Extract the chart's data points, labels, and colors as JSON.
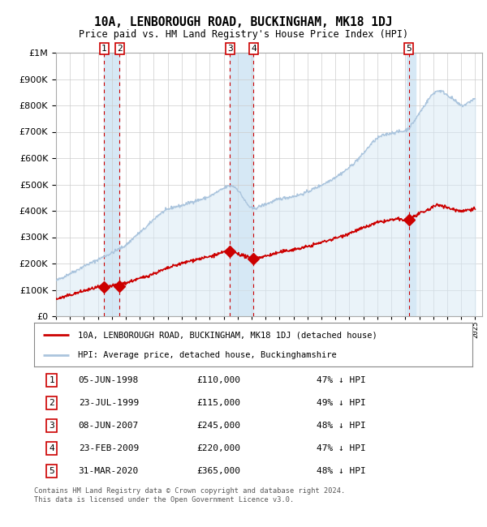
{
  "title": "10A, LENBOROUGH ROAD, BUCKINGHAM, MK18 1DJ",
  "subtitle": "Price paid vs. HM Land Registry's House Price Index (HPI)",
  "footer": "Contains HM Land Registry data © Crown copyright and database right 2024.\nThis data is licensed under the Open Government Licence v3.0.",
  "legend_label_red": "10A, LENBOROUGH ROAD, BUCKINGHAM, MK18 1DJ (detached house)",
  "legend_label_blue": "HPI: Average price, detached house, Buckinghamshire",
  "transactions": [
    {
      "num": 1,
      "date": "05-JUN-1998",
      "price": 110000,
      "pct": "47% ↓ HPI",
      "year": 1998.44
    },
    {
      "num": 2,
      "date": "23-JUL-1999",
      "price": 115000,
      "pct": "49% ↓ HPI",
      "year": 1999.56
    },
    {
      "num": 3,
      "date": "08-JUN-2007",
      "price": 245000,
      "pct": "48% ↓ HPI",
      "year": 2007.44
    },
    {
      "num": 4,
      "date": "23-FEB-2009",
      "price": 220000,
      "pct": "47% ↓ HPI",
      "year": 2009.14
    },
    {
      "num": 5,
      "date": "31-MAR-2020",
      "price": 365000,
      "pct": "48% ↓ HPI",
      "year": 2020.25
    }
  ],
  "hpi_color": "#aac4dd",
  "paid_color": "#cc0000",
  "vline_color": "#cc0000",
  "vspan_color": "#d6e8f5",
  "background_color": "#ffffff",
  "grid_color": "#cccccc",
  "ylim": [
    0,
    1000000
  ],
  "xlim_start": 1995.0,
  "xlim_end": 2025.5,
  "hpi_series": {
    "years": [
      1995.0,
      1995.5,
      1996.0,
      1996.5,
      1997.0,
      1997.5,
      1998.0,
      1998.5,
      1999.0,
      1999.5,
      2000.0,
      2000.5,
      2001.0,
      2001.5,
      2002.0,
      2002.5,
      2003.0,
      2003.5,
      2004.0,
      2004.5,
      2005.0,
      2005.5,
      2006.0,
      2006.5,
      2007.0,
      2007.5,
      2008.0,
      2008.5,
      2009.0,
      2009.5,
      2010.0,
      2010.5,
      2011.0,
      2011.5,
      2012.0,
      2012.5,
      2013.0,
      2013.5,
      2014.0,
      2014.5,
      2015.0,
      2015.5,
      2016.0,
      2016.5,
      2017.0,
      2017.5,
      2018.0,
      2018.5,
      2019.0,
      2019.5,
      2020.0,
      2020.5,
      2021.0,
      2021.5,
      2022.0,
      2022.5,
      2023.0,
      2023.5,
      2024.0,
      2024.5,
      2025.0
    ],
    "prices": [
      135000,
      148000,
      162000,
      175000,
      190000,
      202000,
      215000,
      228000,
      240000,
      255000,
      270000,
      295000,
      318000,
      340000,
      368000,
      390000,
      405000,
      415000,
      420000,
      430000,
      438000,
      445000,
      455000,
      470000,
      485000,
      495000,
      480000,
      440000,
      410000,
      415000,
      425000,
      435000,
      445000,
      450000,
      455000,
      462000,
      472000,
      485000,
      498000,
      512000,
      528000,
      545000,
      565000,
      590000,
      618000,
      650000,
      675000,
      688000,
      695000,
      700000,
      705000,
      730000,
      770000,
      810000,
      845000,
      855000,
      840000,
      820000,
      800000,
      810000,
      825000
    ]
  },
  "paid_series": {
    "years": [
      1995.0,
      1995.5,
      1996.0,
      1996.5,
      1997.0,
      1997.5,
      1998.0,
      1998.5,
      1999.0,
      1999.5,
      2000.0,
      2000.5,
      2001.0,
      2001.5,
      2002.0,
      2002.5,
      2003.0,
      2003.5,
      2004.0,
      2004.5,
      2005.0,
      2005.5,
      2006.0,
      2006.5,
      2007.0,
      2007.5,
      2008.0,
      2008.5,
      2009.0,
      2009.5,
      2010.0,
      2010.5,
      2011.0,
      2011.5,
      2012.0,
      2012.5,
      2013.0,
      2013.5,
      2014.0,
      2014.5,
      2015.0,
      2015.5,
      2016.0,
      2016.5,
      2017.0,
      2017.5,
      2018.0,
      2018.5,
      2019.0,
      2019.5,
      2020.0,
      2020.5,
      2021.0,
      2021.5,
      2022.0,
      2022.5,
      2023.0,
      2023.5,
      2024.0,
      2024.5,
      2025.0
    ],
    "prices": [
      65000,
      72000,
      80000,
      88000,
      96000,
      103000,
      110000,
      112000,
      115000,
      120000,
      126000,
      135000,
      143000,
      152000,
      162000,
      172000,
      182000,
      192000,
      200000,
      208000,
      215000,
      220000,
      226000,
      234000,
      242000,
      248000,
      238000,
      228000,
      220000,
      223000,
      228000,
      235000,
      242000,
      248000,
      253000,
      258000,
      264000,
      272000,
      280000,
      288000,
      296000,
      305000,
      315000,
      325000,
      335000,
      345000,
      355000,
      360000,
      365000,
      368000,
      365000,
      375000,
      388000,
      400000,
      415000,
      422000,
      412000,
      405000,
      400000,
      404000,
      408000
    ]
  }
}
